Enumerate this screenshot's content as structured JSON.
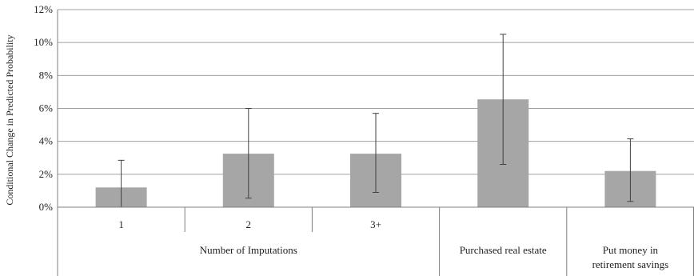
{
  "chart_data": {
    "type": "bar",
    "ylabel": "Conditional Change in Predicted Probability",
    "ylim": [
      0,
      12
    ],
    "yticks": [
      "0%",
      "2%",
      "4%",
      "6%",
      "8%",
      "10%",
      "12%"
    ],
    "grid": true,
    "categories": [
      "1",
      "2",
      "3+",
      "Purchased real estate",
      "Put money in retirement savings"
    ],
    "group_label": "Number of Imputations",
    "values": [
      1.2,
      3.25,
      3.25,
      6.55,
      2.2
    ],
    "error_low": [
      0.0,
      0.55,
      0.9,
      2.6,
      0.35
    ],
    "error_high": [
      2.85,
      6.0,
      5.7,
      10.5,
      4.15
    ],
    "unit": "%",
    "colors": {
      "bar": "#a6a6a6",
      "grid": "#a0a0a0",
      "axis": "#7f7f7f",
      "error": "#404040"
    }
  }
}
